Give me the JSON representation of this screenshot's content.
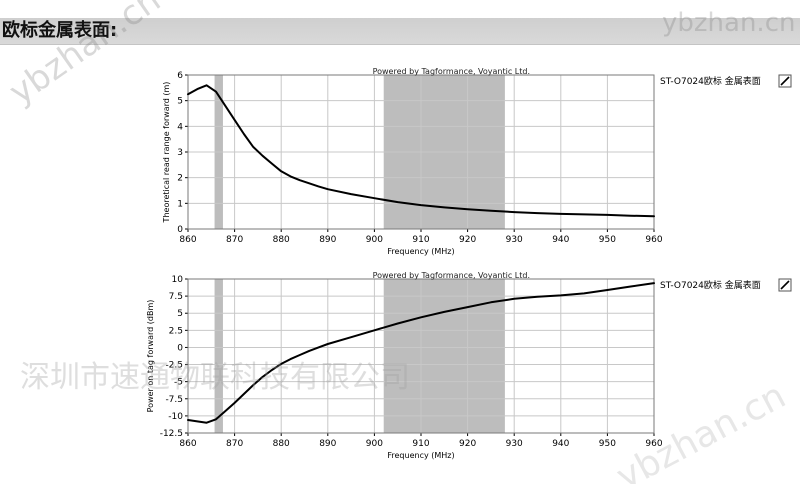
{
  "page": {
    "title": "欧标金属表面:"
  },
  "watermarks": {
    "brand_top_right": "ybzhan.cn",
    "brand_top_left": "ybzhan.cn",
    "brand_bottom_right": "ybzhan.cn",
    "company": "深圳市速通物联科技有限公司"
  },
  "chart_data": [
    {
      "type": "line",
      "title": "Powered by Tagformance, Voyantic Ltd.",
      "xlabel": "Frequency (MHz)",
      "ylabel": "Theoretical read range forward (m)",
      "xlim": [
        860,
        960
      ],
      "ylim": [
        0,
        6
      ],
      "x_ticks": [
        860,
        870,
        880,
        890,
        900,
        910,
        920,
        930,
        940,
        950,
        960
      ],
      "y_ticks": [
        0,
        1,
        2,
        3,
        4,
        5,
        6
      ],
      "x_tick_labels": [
        "860",
        "870",
        "880",
        "890",
        "900",
        "910",
        "920",
        "930",
        "940",
        "950",
        "960"
      ],
      "y_tick_labels": [
        "0",
        "1",
        "2",
        "3",
        "4",
        "5",
        "6"
      ],
      "grid": true,
      "legend_position": "right",
      "bands": [
        {
          "x_start": 865.7,
          "x_end": 867.5,
          "color": "#bdbdbd"
        },
        {
          "x_start": 902,
          "x_end": 928,
          "color": "#bdbdbd"
        }
      ],
      "series": [
        {
          "name": "ST-O7024欧标 金属表面",
          "color": "#000000",
          "x": [
            860,
            862,
            864,
            866,
            868,
            870,
            872,
            874,
            876,
            878,
            880,
            882,
            884,
            886,
            888,
            890,
            895,
            900,
            905,
            910,
            915,
            920,
            925,
            930,
            935,
            940,
            945,
            950,
            955,
            960
          ],
          "y": [
            5.25,
            5.45,
            5.6,
            5.35,
            4.8,
            4.25,
            3.7,
            3.2,
            2.85,
            2.55,
            2.25,
            2.05,
            1.9,
            1.78,
            1.66,
            1.55,
            1.36,
            1.2,
            1.05,
            0.93,
            0.84,
            0.77,
            0.71,
            0.66,
            0.62,
            0.59,
            0.57,
            0.55,
            0.52,
            0.5
          ]
        }
      ]
    },
    {
      "type": "line",
      "title": "Powered by Tagformance, Voyantic Ltd.",
      "xlabel": "Frequency (MHz)",
      "ylabel": "Power on tag forward (dBm)",
      "xlim": [
        860,
        960
      ],
      "ylim": [
        -12.5,
        10
      ],
      "x_ticks": [
        860,
        870,
        880,
        890,
        900,
        910,
        920,
        930,
        940,
        950,
        960
      ],
      "y_ticks": [
        10,
        7.5,
        5,
        2.5,
        0,
        -2.5,
        -5,
        -7.5,
        -10,
        -12.5
      ],
      "x_tick_labels": [
        "860",
        "870",
        "880",
        "890",
        "900",
        "910",
        "920",
        "930",
        "940",
        "950",
        "960"
      ],
      "y_tick_labels": [
        "10",
        "7.5",
        "5",
        "2.5",
        "0",
        "-2.5",
        "-5",
        "-7.5",
        "-10",
        "-12.5"
      ],
      "grid": true,
      "legend_position": "right",
      "bands": [
        {
          "x_start": 865.7,
          "x_end": 867.5,
          "color": "#bdbdbd"
        },
        {
          "x_start": 902,
          "x_end": 928,
          "color": "#bdbdbd"
        }
      ],
      "series": [
        {
          "name": "ST-O7024欧标 金属表面",
          "color": "#000000",
          "x": [
            860,
            862,
            864,
            866,
            868,
            870,
            872,
            874,
            876,
            878,
            880,
            882,
            884,
            886,
            888,
            890,
            895,
            900,
            905,
            910,
            915,
            920,
            925,
            930,
            935,
            940,
            945,
            950,
            955,
            960
          ],
          "y": [
            -10.6,
            -10.8,
            -11,
            -10.5,
            -9.3,
            -8.1,
            -6.8,
            -5.5,
            -4.3,
            -3.3,
            -2.4,
            -1.7,
            -1.1,
            -0.5,
            0,
            0.5,
            1.5,
            2.5,
            3.5,
            4.4,
            5.2,
            5.9,
            6.6,
            7.1,
            7.4,
            7.6,
            7.9,
            8.4,
            8.9,
            9.4
          ]
        }
      ]
    }
  ]
}
